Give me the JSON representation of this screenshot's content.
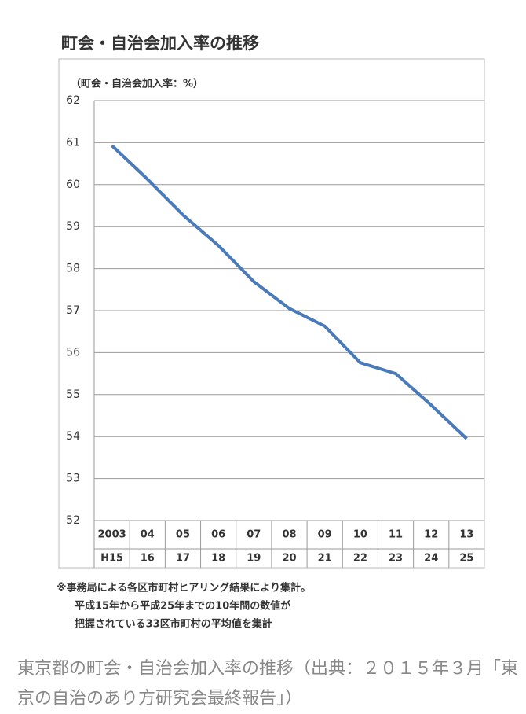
{
  "chart_data": {
    "type": "line",
    "title": "町会・自治会加入率の推移",
    "ylabel": "（町会・自治会加入率：%）",
    "categories": [
      [
        "2003",
        "H15"
      ],
      [
        "04",
        "16"
      ],
      [
        "05",
        "17"
      ],
      [
        "06",
        "18"
      ],
      [
        "07",
        "19"
      ],
      [
        "08",
        "20"
      ],
      [
        "09",
        "21"
      ],
      [
        "10",
        "22"
      ],
      [
        "11",
        "23"
      ],
      [
        "12",
        "24"
      ],
      [
        "13",
        "25"
      ]
    ],
    "values": [
      60.93,
      60.13,
      59.28,
      58.55,
      57.69,
      57.05,
      56.63,
      55.76,
      55.5,
      54.75,
      53.95
    ],
    "color": "#4a7ab8",
    "ylim": [
      52,
      62
    ],
    "yticks": [
      52,
      53,
      54,
      55,
      56,
      57,
      58,
      59,
      60,
      61,
      62
    ],
    "grid": true,
    "notes": [
      "※事務局による各区市町村ヒアリング結果により集計。",
      "平成15年から平成25年までの10年間の数値が",
      "把握されている33区市町村の平均値を集計"
    ]
  },
  "caption": "東京都の町会・自治会加入率の推移（出典：２０１５年３月「東京の自治のあり方研究会最終報告」）"
}
